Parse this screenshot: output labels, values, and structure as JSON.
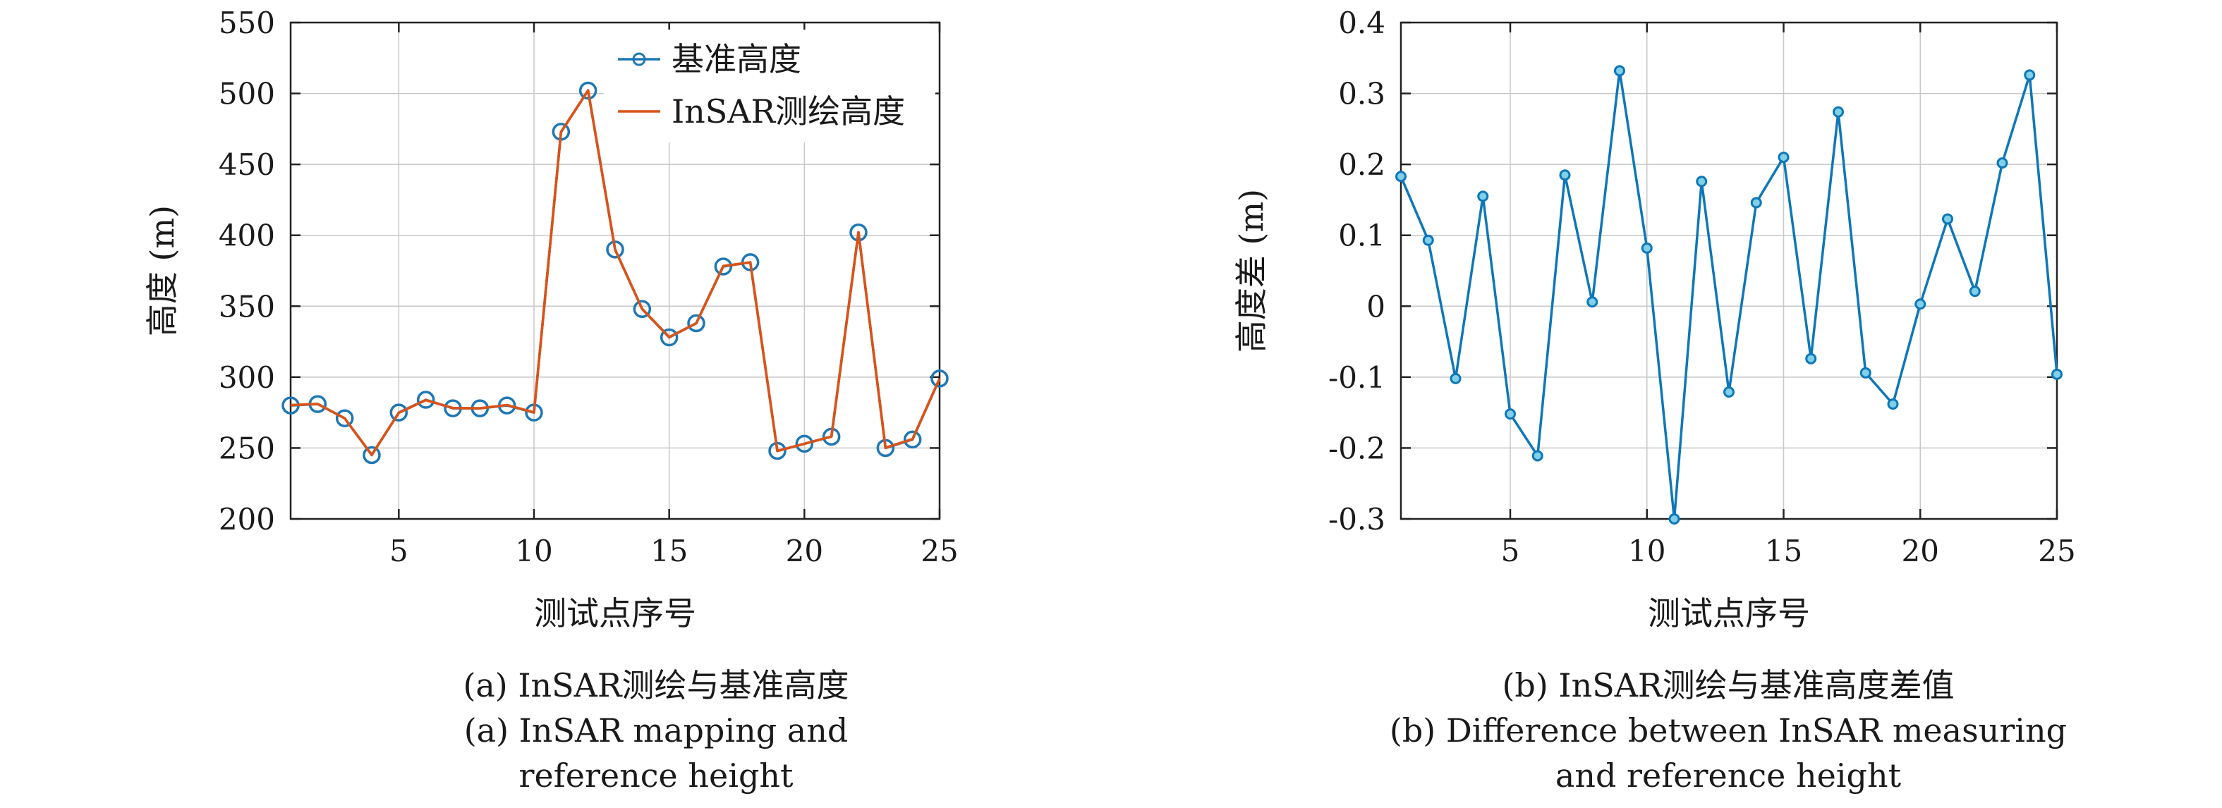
{
  "chart_data": [
    {
      "type": "line",
      "ylabel": "高度 (m)",
      "xlabel": "测试点序号",
      "xlim": [
        1,
        25
      ],
      "ylim": [
        200,
        550
      ],
      "xticks": [
        5,
        10,
        15,
        20,
        25
      ],
      "yticks": [
        200,
        250,
        300,
        350,
        400,
        450,
        500,
        550
      ],
      "grid": true,
      "legend_position": "top-right",
      "x": [
        1,
        2,
        3,
        4,
        5,
        6,
        7,
        8,
        9,
        10,
        11,
        12,
        13,
        14,
        15,
        16,
        17,
        18,
        19,
        20,
        21,
        22,
        23,
        24,
        25
      ],
      "series": [
        {
          "name": "基准高度",
          "color": "#1f77b4",
          "marker": "circle",
          "values": [
            280,
            281,
            271,
            245,
            275,
            284,
            278,
            278,
            280,
            275,
            473,
            502,
            390,
            348,
            328,
            338,
            378,
            381,
            248,
            253,
            258,
            402,
            250,
            256,
            299
          ]
        },
        {
          "name": "InSAR测绘高度",
          "color": "#d95319",
          "marker": "none",
          "values": [
            280.2,
            281.1,
            270.9,
            245.2,
            274.8,
            283.8,
            278.2,
            278.0,
            280.3,
            275.1,
            472.7,
            502.2,
            389.9,
            348.1,
            328.2,
            337.9,
            378.3,
            380.9,
            247.9,
            253.0,
            258.1,
            402.2,
            250.2,
            256.3,
            298.9
          ]
        }
      ],
      "caption_lines": [
        "(a) InSAR测绘与基准高度",
        "(a) InSAR mapping and",
        "reference height"
      ]
    },
    {
      "type": "line",
      "ylabel": "高度差 (m)",
      "xlabel": "测试点序号",
      "xlim": [
        1,
        25
      ],
      "ylim": [
        -0.3,
        0.4
      ],
      "xticks": [
        5,
        10,
        15,
        20,
        25
      ],
      "yticks": [
        -0.3,
        -0.2,
        -0.1,
        0,
        0.1,
        0.2,
        0.3,
        0.4
      ],
      "ytick_labels": [
        "-0.3",
        "-0.2",
        "-0.1",
        "0",
        "0.1",
        "0.2",
        "0.3",
        "0.4"
      ],
      "grid": true,
      "x": [
        1,
        2,
        3,
        4,
        5,
        6,
        7,
        8,
        9,
        10,
        11,
        12,
        13,
        14,
        15,
        16,
        17,
        18,
        19,
        20,
        21,
        22,
        23,
        24,
        25
      ],
      "series": [
        {
          "color": "#0e77b8",
          "marker": "circle",
          "values": [
            0.183,
            0.093,
            -0.102,
            0.155,
            -0.152,
            -0.211,
            0.185,
            0.006,
            0.332,
            0.082,
            -0.3,
            0.176,
            -0.121,
            0.146,
            0.21,
            -0.074,
            0.274,
            -0.094,
            -0.138,
            0.003,
            0.123,
            0.021,
            0.202,
            0.326,
            -0.096
          ]
        }
      ],
      "caption_lines": [
        "(b) InSAR测绘与基准高度差值",
        "(b) Difference between InSAR measuring",
        "and reference height"
      ]
    }
  ]
}
